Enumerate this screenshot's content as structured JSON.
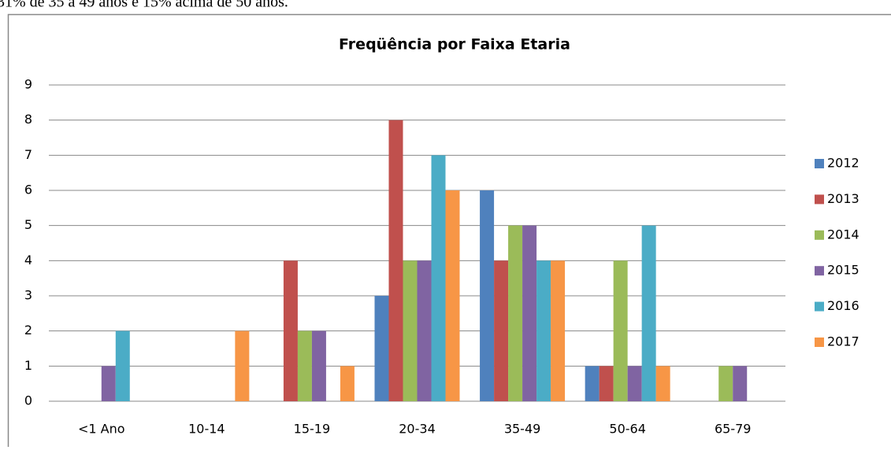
{
  "document_text": "31% de 35 a 49 anos e 15% acima de 50 anos.",
  "chart_data": {
    "type": "bar",
    "title": "Freqüência por Faixa Etaria",
    "categories": [
      "<1 Ano",
      "10-14",
      "15-19",
      "20-34",
      "35-49",
      "50-64",
      "65-79"
    ],
    "series": [
      {
        "name": "2012",
        "color": "#4f81bd",
        "values": [
          0,
          0,
          0,
          3,
          6,
          1,
          0
        ]
      },
      {
        "name": "2013",
        "color": "#c0504d",
        "values": [
          0,
          0,
          4,
          8,
          4,
          1,
          0
        ]
      },
      {
        "name": "2014",
        "color": "#9bbb59",
        "values": [
          0,
          0,
          2,
          4,
          5,
          4,
          1
        ]
      },
      {
        "name": "2015",
        "color": "#8064a2",
        "values": [
          1,
          0,
          2,
          4,
          5,
          1,
          1
        ]
      },
      {
        "name": "2016",
        "color": "#4bacc6",
        "values": [
          2,
          0,
          0,
          7,
          4,
          5,
          0
        ]
      },
      {
        "name": "2017",
        "color": "#f79646",
        "values": [
          0,
          2,
          1,
          6,
          4,
          1,
          0
        ]
      }
    ],
    "ylim": [
      0,
      9
    ],
    "yticks": [
      0,
      1,
      2,
      3,
      4,
      5,
      6,
      7,
      8,
      9
    ],
    "grid": true,
    "legend": "right"
  }
}
